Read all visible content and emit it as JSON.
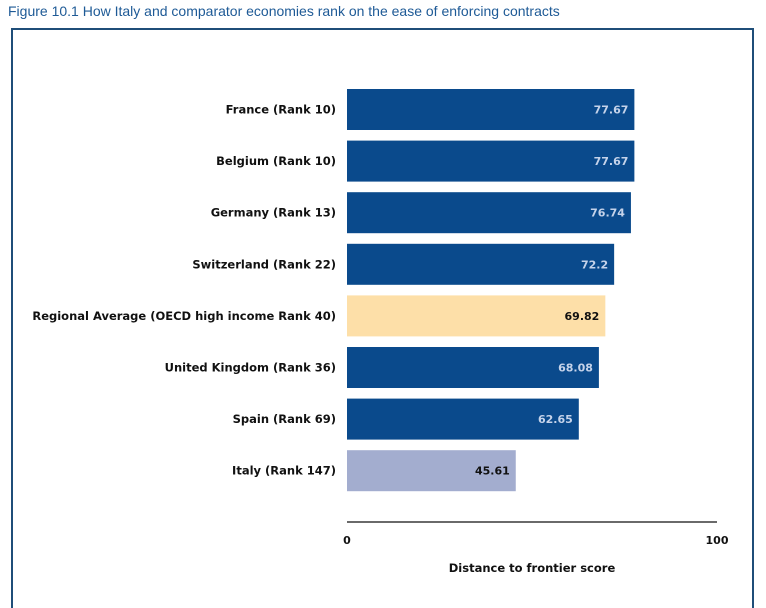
{
  "figure_title": "Figure 10.1 How Italy and comparator economies rank on the ease of enforcing contracts",
  "colors": {
    "default_bar": "#0a4a8c",
    "regional_average_bar": "#fddfa8",
    "italy_bar": "#a3adcf",
    "default_value_text": "#c5d3ea",
    "dark_value_text": "#111111",
    "frame": "#1f4e79",
    "title_text": "#1e5a96"
  },
  "chart_data": {
    "type": "bar",
    "orientation": "horizontal",
    "categories": [
      "France (Rank 10)",
      "Belgium (Rank 10)",
      "Germany (Rank 13)",
      "Switzerland (Rank 22)",
      "Regional Average (OECD high income Rank 40)",
      "United Kingdom (Rank 36)",
      "Spain (Rank 69)",
      "Italy (Rank 147)"
    ],
    "values": [
      77.67,
      77.67,
      76.74,
      72.2,
      69.82,
      68.08,
      62.65,
      45.61
    ],
    "value_labels": [
      "77.67",
      "77.67",
      "76.74",
      "72.2",
      "69.82",
      "68.08",
      "62.65",
      "45.61"
    ],
    "highlight": [
      "default",
      "default",
      "default",
      "default",
      "regional",
      "default",
      "default",
      "italy"
    ],
    "xlim": [
      0,
      100
    ],
    "xticks": [
      "0",
      "100"
    ],
    "xlabel": "Distance to frontier score",
    "grid": false,
    "legend": "none"
  }
}
